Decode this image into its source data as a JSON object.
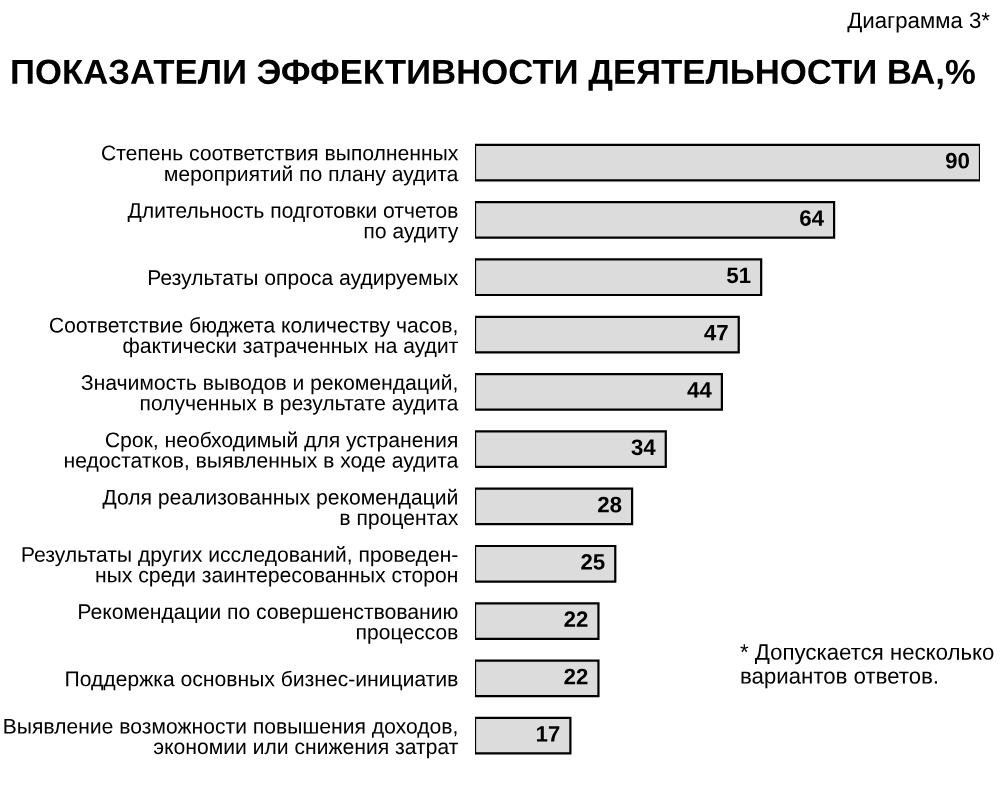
{
  "chart_data": {
    "type": "bar",
    "orientation": "horizontal",
    "title": "ПОКАЗАТЕЛИ ЭФФЕКТИВНОСТИ ДЕЯТЕЛЬНОСТИ ВА,%",
    "subtitle": "Диаграмма 3*",
    "categories": [
      "Степень соответствия выполненных\nмероприятий по плану аудита",
      "Длительность подготовки отчетов\nпо аудиту",
      "Результаты опроса аудируемых",
      "Соответствие бюджета количеству часов,\nфактически затраченных на аудит",
      "Значимость выводов и рекомендаций,\nполученных в результате аудита",
      "Срок, необходимый для устранения\nнедостатков, выявленных в ходе аудита",
      "Доля реализованных рекомендаций\nв процентах",
      "Результаты других исследований, проведен-\nных среди заинтересованных сторон",
      "Рекомендации по совершенствованию\nпроцессов",
      "Поддержка основных бизнес-инициатив",
      "Выявление возможности повышения доходов,\nэкономии или снижения затрат"
    ],
    "values": [
      90,
      64,
      51,
      47,
      44,
      34,
      28,
      25,
      22,
      22,
      17
    ],
    "color": "#dcdcdc",
    "data_labels": true,
    "annotations": [
      "* Допускается несколько\nвариантов ответов."
    ]
  }
}
